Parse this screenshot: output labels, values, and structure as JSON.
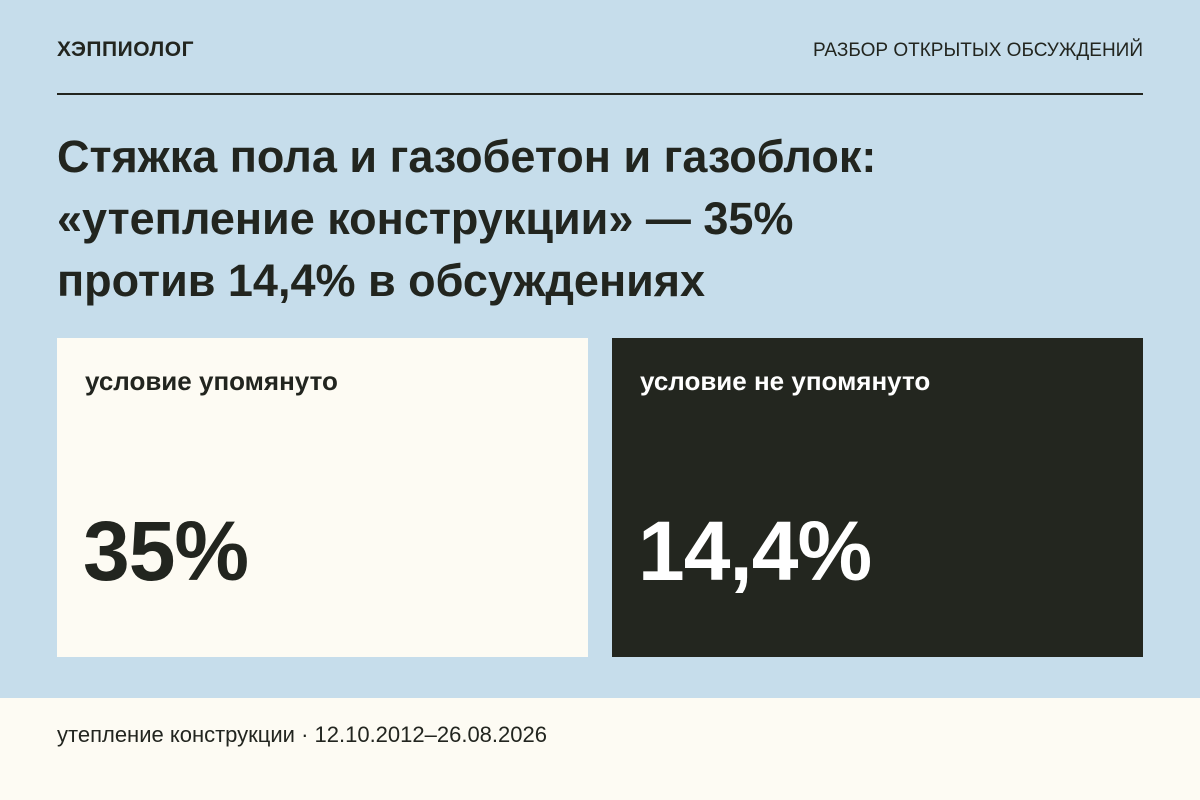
{
  "header": {
    "brand": "ХЭППИОЛОГ",
    "section": "РАЗБОР ОТКРЫТЫХ ОБСУЖДЕНИЙ"
  },
  "title": {
    "lines": [
      "Стяжка пола и газобетон и газоблок:",
      "«утепление конструкции» — 35%",
      "против 14,4% в обсуждениях"
    ]
  },
  "cards": [
    {
      "label": "условие упомянуто",
      "value": "35%"
    },
    {
      "label": "условие не упомянуто",
      "value": "14,4%"
    }
  ],
  "footer": {
    "text": "утепление конструкции · 12.10.2012–26.08.2026"
  }
}
